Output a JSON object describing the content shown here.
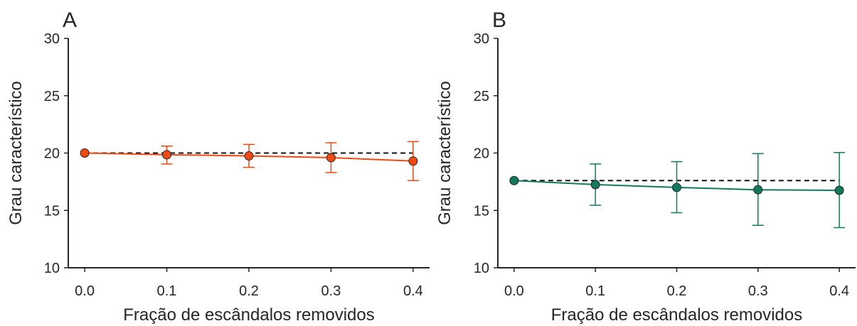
{
  "chart_data": [
    {
      "type": "line",
      "panel_label": "A",
      "xlabel": "Fração de escândalos removidos",
      "ylabel": "Grau característico",
      "xlim": [
        -0.02,
        0.42
      ],
      "ylim": [
        10,
        30
      ],
      "xticks": [
        "0.0",
        "0.1",
        "0.2",
        "0.3",
        "0.4"
      ],
      "yticks": [
        "10",
        "15",
        "20",
        "25",
        "30"
      ],
      "reference_line": 20.0,
      "color": "#f04a12",
      "series": [
        {
          "x": [
            0.0,
            0.1,
            0.2,
            0.3,
            0.4
          ],
          "y": [
            20.0,
            19.85,
            19.75,
            19.6,
            19.3
          ],
          "err_low": [
            20.0,
            19.05,
            18.75,
            18.3,
            17.6
          ],
          "err_high": [
            20.0,
            20.6,
            20.75,
            20.9,
            21.0
          ]
        }
      ]
    },
    {
      "type": "line",
      "panel_label": "B",
      "xlabel": "Fração de escândalos removidos",
      "ylabel": "Grau característico",
      "xlim": [
        -0.02,
        0.42
      ],
      "ylim": [
        10,
        30
      ],
      "xticks": [
        "0.0",
        "0.1",
        "0.2",
        "0.3",
        "0.4"
      ],
      "yticks": [
        "10",
        "15",
        "20",
        "25",
        "30"
      ],
      "reference_line": 17.6,
      "color": "#11795d",
      "series": [
        {
          "x": [
            0.0,
            0.1,
            0.2,
            0.3,
            0.4
          ],
          "y": [
            17.6,
            17.25,
            17.0,
            16.8,
            16.75
          ],
          "err_low": [
            17.6,
            15.45,
            14.8,
            13.7,
            13.5
          ],
          "err_high": [
            17.6,
            19.05,
            19.25,
            19.95,
            20.05
          ]
        }
      ]
    }
  ]
}
